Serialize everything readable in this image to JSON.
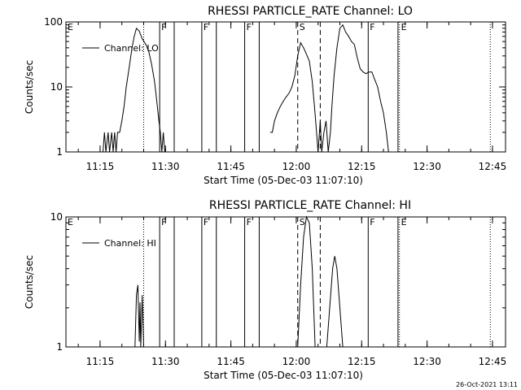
{
  "footer_timestamp": "26-Oct-2021 13:11",
  "chart_data": [
    {
      "type": "line",
      "title": "RHESSI PARTICLE_RATE Channel: LO",
      "xlabel": "Start Time (05-Dec-03 11:07:10)",
      "ylabel": "Counts/sec",
      "y_scale": "log",
      "ylim": [
        1,
        100
      ],
      "y_ticks": [
        {
          "v": 1,
          "label": "1"
        },
        {
          "v": 10,
          "label": "10"
        },
        {
          "v": 100,
          "label": "100"
        }
      ],
      "xlim": [
        "11:07:10",
        "12:48:00"
      ],
      "x_ticks": [
        "11:15",
        "11:30",
        "11:45",
        "12:00",
        "12:15",
        "12:30",
        "12:45"
      ],
      "legend": {
        "label": "Channel: LO",
        "placement": "top-left"
      },
      "series": [
        {
          "name": "Channel: LO",
          "segments": [
            [
              [
                "11:15:40",
                1
              ],
              [
                "11:16:00",
                2
              ],
              [
                "11:16:20",
                1
              ],
              [
                "11:16:50",
                2
              ],
              [
                "11:17:10",
                1
              ],
              [
                "11:17:40",
                2
              ],
              [
                "11:18:00",
                1
              ],
              [
                "11:18:20",
                2
              ],
              [
                "11:18:40",
                1
              ],
              [
                "11:19:00",
                2
              ],
              [
                "11:19:30",
                2
              ],
              [
                "11:20:00",
                3
              ],
              [
                "11:20:30",
                5
              ],
              [
                "11:21:00",
                10
              ],
              [
                "11:21:40",
                20
              ],
              [
                "11:22:20",
                40
              ],
              [
                "11:22:50",
                60
              ],
              [
                "11:23:20",
                80
              ],
              [
                "11:24:00",
                72
              ],
              [
                "11:24:40",
                55
              ],
              [
                "11:25:30",
                45
              ],
              [
                "11:26:10",
                35
              ],
              [
                "11:26:50",
                22
              ],
              [
                "11:27:30",
                12
              ],
              [
                "11:28:00",
                6
              ],
              [
                "11:28:30",
                3
              ],
              [
                "11:28:50",
                2
              ],
              [
                "11:29:10",
                1
              ],
              [
                "11:29:30",
                2
              ],
              [
                "11:29:50",
                1
              ]
            ],
            [
              [
                "11:54:00",
                2
              ],
              [
                "11:54:30",
                2
              ],
              [
                "11:55:00",
                3
              ],
              [
                "11:55:40",
                4
              ],
              [
                "11:56:20",
                5
              ],
              [
                "11:57:00",
                6
              ],
              [
                "11:57:40",
                7
              ],
              [
                "11:58:20",
                8
              ],
              [
                "11:59:00",
                10
              ],
              [
                "11:59:40",
                15
              ],
              [
                "12:00:20",
                30
              ],
              [
                "12:01:00",
                48
              ],
              [
                "12:01:40",
                40
              ],
              [
                "12:02:20",
                32
              ],
              [
                "12:03:00",
                25
              ],
              [
                "12:03:40",
                12
              ],
              [
                "12:04:10",
                5
              ],
              [
                "12:04:40",
                2
              ],
              [
                "12:05:00",
                1
              ],
              [
                "12:05:30",
                3
              ],
              [
                "12:05:50",
                1
              ],
              [
                "12:06:20",
                2
              ],
              [
                "12:06:50",
                3
              ],
              [
                "12:07:20",
                1
              ],
              [
                "12:07:50",
                2
              ],
              [
                "12:08:10",
                5
              ],
              [
                "12:08:40",
                15
              ],
              [
                "12:09:20",
                40
              ],
              [
                "12:10:00",
                80
              ],
              [
                "12:10:40",
                90
              ],
              [
                "12:11:20",
                70
              ],
              [
                "12:12:00",
                60
              ],
              [
                "12:12:40",
                50
              ],
              [
                "12:13:20",
                45
              ],
              [
                "12:14:00",
                28
              ],
              [
                "12:14:40",
                19
              ],
              [
                "12:15:20",
                17
              ],
              [
                "12:16:00",
                16
              ],
              [
                "12:16:40",
                17
              ],
              [
                "12:17:20",
                17
              ],
              [
                "12:18:00",
                13
              ],
              [
                "12:18:40",
                10
              ],
              [
                "12:19:20",
                6
              ],
              [
                "12:20:00",
                4
              ],
              [
                "12:20:40",
                2
              ],
              [
                "12:21:10",
                1
              ]
            ]
          ]
        }
      ],
      "markers": [
        {
          "t": "11:07:10",
          "style": "dotted",
          "label": "E"
        },
        {
          "t": "11:25:00",
          "style": "dotted",
          "label": ""
        },
        {
          "t": "11:28:40",
          "style": "solid",
          "label": "F"
        },
        {
          "t": "11:32:00",
          "style": "solid",
          "label": ""
        },
        {
          "t": "11:38:20",
          "style": "solid",
          "label": "F"
        },
        {
          "t": "11:41:40",
          "style": "solid",
          "label": ""
        },
        {
          "t": "11:48:10",
          "style": "solid",
          "label": "F"
        },
        {
          "t": "11:51:30",
          "style": "solid",
          "label": ""
        },
        {
          "t": "12:00:20",
          "style": "dashed",
          "label": "S"
        },
        {
          "t": "12:05:30",
          "style": "dashed",
          "label": ""
        },
        {
          "t": "12:16:30",
          "style": "solid",
          "label": "F"
        },
        {
          "t": "12:23:20",
          "style": "solid",
          "label": ""
        },
        {
          "t": "12:23:40",
          "style": "dotted",
          "label": "E"
        },
        {
          "t": "12:44:30",
          "style": "dotted",
          "label": ""
        }
      ]
    },
    {
      "type": "line",
      "title": "RHESSI PARTICLE_RATE Channel: HI",
      "xlabel": "Start Time (05-Dec-03 11:07:10)",
      "ylabel": "Counts/sec",
      "y_scale": "log",
      "ylim": [
        1,
        10
      ],
      "y_ticks": [
        {
          "v": 1,
          "label": "1"
        },
        {
          "v": 10,
          "label": "10"
        }
      ],
      "xlim": [
        "11:07:10",
        "12:48:00"
      ],
      "x_ticks": [
        "11:15",
        "11:30",
        "11:45",
        "12:00",
        "12:15",
        "12:30",
        "12:45"
      ],
      "legend": {
        "label": "Channel: HI",
        "placement": "top-left"
      },
      "series": [
        {
          "name": "Channel: HI",
          "segments": [
            [
              [
                "11:23:00",
                1
              ],
              [
                "11:23:20",
                2.5
              ],
              [
                "11:23:40",
                3
              ],
              [
                "11:24:00",
                1.1
              ],
              [
                "11:24:10",
                2.2
              ],
              [
                "11:24:20",
                1
              ],
              [
                "11:24:40",
                2.5
              ],
              [
                "11:25:00",
                1
              ]
            ],
            [
              [
                "12:00:20",
                1
              ],
              [
                "12:01:00",
                3
              ],
              [
                "12:01:40",
                7
              ],
              [
                "12:02:20",
                10
              ],
              [
                "12:03:00",
                9
              ],
              [
                "12:03:40",
                4
              ],
              [
                "12:04:20",
                1
              ]
            ],
            [
              [
                "12:07:00",
                1
              ],
              [
                "12:07:40",
                2
              ],
              [
                "12:08:20",
                4
              ],
              [
                "12:08:50",
                5
              ],
              [
                "12:09:20",
                4
              ],
              [
                "12:10:00",
                2
              ],
              [
                "12:10:40",
                1
              ]
            ]
          ]
        }
      ],
      "markers": [
        {
          "t": "11:07:10",
          "style": "dotted",
          "label": "E"
        },
        {
          "t": "11:25:00",
          "style": "dotted",
          "label": ""
        },
        {
          "t": "11:28:40",
          "style": "solid",
          "label": "F"
        },
        {
          "t": "11:32:00",
          "style": "solid",
          "label": ""
        },
        {
          "t": "11:38:20",
          "style": "solid",
          "label": "F"
        },
        {
          "t": "11:41:40",
          "style": "solid",
          "label": ""
        },
        {
          "t": "11:48:10",
          "style": "solid",
          "label": "F"
        },
        {
          "t": "11:51:30",
          "style": "solid",
          "label": ""
        },
        {
          "t": "12:00:20",
          "style": "dashed",
          "label": "S"
        },
        {
          "t": "12:05:30",
          "style": "dashed",
          "label": ""
        },
        {
          "t": "12:16:30",
          "style": "solid",
          "label": "F"
        },
        {
          "t": "12:23:20",
          "style": "solid",
          "label": ""
        },
        {
          "t": "12:23:40",
          "style": "dotted",
          "label": "E"
        },
        {
          "t": "12:44:30",
          "style": "dotted",
          "label": ""
        }
      ]
    }
  ]
}
